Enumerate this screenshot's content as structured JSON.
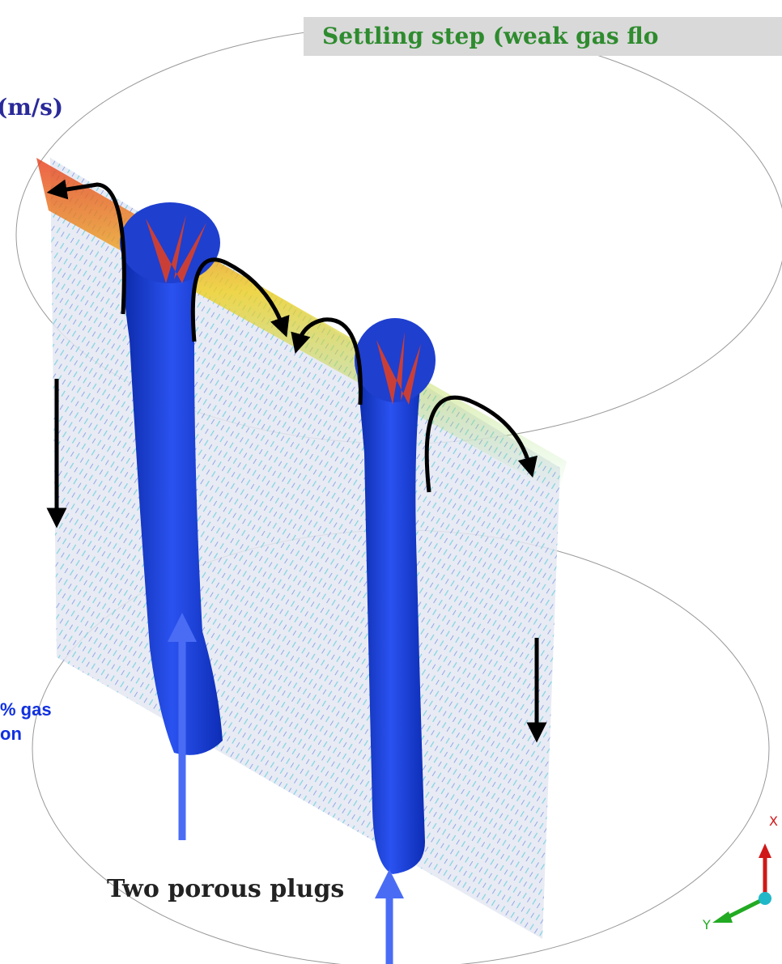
{
  "header": {
    "title": "Settling step (weak gas flo"
  },
  "labels": {
    "velocity_unit": "(m/s)",
    "gas_line1": "% gas",
    "gas_line2": "on",
    "plugs": "Two porous plugs"
  },
  "axes": {
    "x": "X",
    "y": "Y"
  }
}
